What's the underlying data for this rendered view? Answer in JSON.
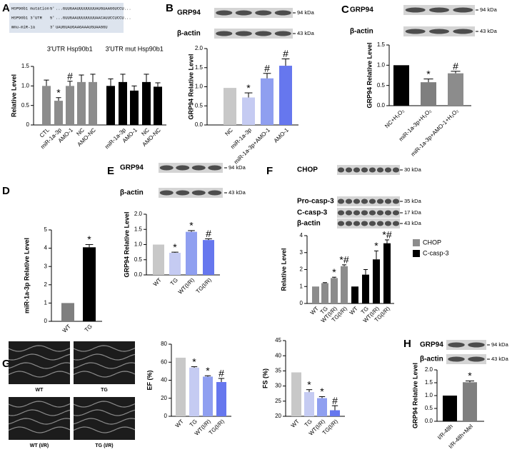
{
  "panel_letters": [
    "A",
    "B",
    "C",
    "D",
    "E",
    "F",
    "G",
    "H"
  ],
  "sequence": {
    "rows": [
      {
        "name": "HSP90b1 mutation",
        "end": "5'",
        "seq": "...GUUGAAUUUUUUUUAUGUAAGGUCCU..."
      },
      {
        "name": "HSP90b1 3'UTR",
        "end": "5'",
        "seq": "...GUUGAAUUUUUUUUAACAUUCCUCCU..."
      },
      {
        "name": "mmu-miR-1a",
        "end": "3'",
        "seq": "UAUGUAUGAAGAAAUGUAAGGU"
      }
    ]
  },
  "blots": [
    {
      "rows": [
        {
          "label": "GRP94",
          "size": "94 kDa"
        },
        {
          "label": "β-actin",
          "size": "43 kDa"
        }
      ]
    },
    {
      "rows": [
        {
          "label": "GRP94",
          "size": "94 kDa"
        },
        {
          "label": "β-actin",
          "size": "43 kDa"
        }
      ]
    },
    {
      "rows": [
        {
          "label": "GRP94",
          "size": "94 kDa"
        },
        {
          "label": "β-actin",
          "size": "43 kDa"
        }
      ]
    },
    {
      "rows": [
        {
          "label": "CHOP",
          "size": "30 kDa"
        },
        {
          "label": "Pro-casp-3",
          "size": "35 kDa"
        },
        {
          "label": "C-casp-3",
          "size": "17 kDa"
        },
        {
          "label": "β-actin",
          "size": "43 kDa"
        }
      ]
    },
    {
      "rows": [
        {
          "label": "GRP94",
          "size": "94 kDa"
        },
        {
          "label": "β-actin",
          "size": "43 kDa"
        }
      ]
    }
  ],
  "echo_images": [
    "WT",
    "TG",
    "WT (I/R)",
    "TG (I/R)"
  ],
  "chart_data": [
    {
      "type": "bar",
      "ylabel": "Relative Level",
      "ylim": [
        0,
        1.5
      ],
      "yticks": [
        0,
        0.5,
        {
          "value": 1,
          "label": "1.0"
        },
        1.5
      ],
      "categories": [
        "CTL",
        "miR-1a-3p",
        "AMO-1",
        "NC",
        "AMO-NC",
        null,
        "miR-1a-3p",
        "AMO-1",
        "NC",
        "AMO-NC"
      ],
      "series": [
        {
          "name": "3'UTR Hsp90b1",
          "color": "#8c8c8c",
          "values": [
            1.0,
            0.62,
            1.0,
            1.1,
            1.1,
            null,
            null,
            null,
            null,
            null
          ],
          "errors": [
            0.15,
            0.08,
            0.12,
            0.18,
            0.2,
            null,
            null,
            null,
            null,
            null
          ],
          "significance": [
            null,
            "*",
            "#",
            null,
            null,
            null,
            null,
            null,
            null,
            null
          ]
        },
        {
          "name": "3'UTR mut Hsp90b1",
          "color": "#000000",
          "values": [
            null,
            null,
            null,
            null,
            null,
            1.0,
            1.1,
            0.88,
            1.1,
            0.98
          ],
          "errors": [
            null,
            null,
            null,
            null,
            null,
            0.18,
            0.2,
            0.12,
            0.2,
            0.1
          ],
          "significance": [
            null,
            null,
            null,
            null,
            null,
            null,
            null,
            null,
            null,
            null
          ]
        }
      ]
    },
    {
      "type": "bar",
      "ylabel": "GRP94 Relative Level",
      "ylim": [
        0,
        2
      ],
      "yticks": [
        {
          "value": 0,
          "label": "0.0"
        },
        0.5,
        {
          "value": 1,
          "label": "1.0"
        },
        1.5,
        {
          "value": 2,
          "label": "2.0"
        }
      ],
      "categories": [
        "NC",
        "miR-1a-3p",
        "miR-1a-3p+AMO-1",
        "AMO-1"
      ],
      "series": [
        {
          "colors": [
            "#c8c8c8",
            "#c5cbf2",
            "#8f9ff0",
            "#6677ee"
          ],
          "values": [
            0.97,
            0.72,
            1.22,
            1.55
          ],
          "errors": [
            null,
            0.12,
            0.13,
            0.18
          ],
          "significance": [
            null,
            "*",
            "#",
            "#"
          ]
        }
      ]
    },
    {
      "type": "bar",
      "ylabel": "GRP94 Relative Level",
      "ylim": [
        0,
        1.5
      ],
      "yticks": [
        {
          "value": 0,
          "label": "0.0"
        },
        0.5,
        {
          "value": 1,
          "label": "1.0"
        },
        1.5
      ],
      "categories": [
        "NC+H₂O₂",
        "miR-1a-3p+H₂O₂",
        "miR-1a-3p+AMO-1+H₂O₂"
      ],
      "series": [
        {
          "colors": [
            "#000000",
            "#7f7f7f",
            "#8c8c8c"
          ],
          "values": [
            1.0,
            0.58,
            0.8
          ],
          "errors": [
            null,
            0.08,
            0.05
          ],
          "significance": [
            null,
            "*",
            "#"
          ]
        }
      ]
    },
    {
      "type": "bar",
      "ylabel": "miR-1a-3p Relative Level",
      "ylim": [
        0,
        5
      ],
      "yticks": [
        0,
        1,
        2,
        3,
        4,
        5
      ],
      "categories": [
        "WT",
        "TG"
      ],
      "series": [
        {
          "colors": [
            "#7f7f7f",
            "#000000"
          ],
          "values": [
            1.0,
            4.05
          ],
          "errors": [
            null,
            0.15
          ],
          "significance": [
            null,
            "*"
          ]
        }
      ]
    },
    {
      "type": "bar",
      "ylabel": "GRP94 Relative Level",
      "ylim": [
        0,
        2
      ],
      "yticks": [
        {
          "value": 0,
          "label": "0.0"
        },
        0.5,
        {
          "value": 1,
          "label": "1.0"
        },
        1.5,
        {
          "value": 2,
          "label": "2.0"
        }
      ],
      "categories": [
        "WT",
        "TG",
        "WT(I/R)",
        "TG(I/R)"
      ],
      "series": [
        {
          "colors": [
            "#c8c8c8",
            "#c5cbf2",
            "#8f9ff0",
            "#6677ee"
          ],
          "values": [
            1.0,
            0.73,
            1.42,
            1.15
          ],
          "errors": [
            null,
            0.02,
            0.04,
            0.04
          ],
          "significance": [
            null,
            "*",
            "*",
            "#"
          ]
        }
      ]
    },
    {
      "type": "bar",
      "ylabel": "Relative Level",
      "ylim": [
        0,
        4
      ],
      "legend": "right",
      "yticks": [
        0,
        1,
        2,
        3,
        4
      ],
      "categories": [
        "WT",
        "TG",
        "WT(I/R)",
        "TG(I/R)",
        "WT",
        "TG",
        "WT(I/R)",
        "TG(I/R)"
      ],
      "series": [
        {
          "name": "CHOP",
          "color": "#8c8c8c",
          "values": [
            1.0,
            1.2,
            1.5,
            2.2,
            null,
            null,
            null,
            null
          ],
          "errors": [
            null,
            0.03,
            0.05,
            0.08,
            null,
            null,
            null,
            null
          ],
          "significance": [
            null,
            null,
            "*",
            "*#",
            null,
            null,
            null,
            null
          ]
        },
        {
          "name": "C-casp-3",
          "color": "#000000",
          "values": [
            null,
            null,
            null,
            null,
            1.0,
            1.7,
            2.6,
            3.55
          ],
          "errors": [
            null,
            null,
            null,
            null,
            null,
            0.3,
            0.5,
            0.2
          ],
          "significance": [
            null,
            null,
            null,
            null,
            null,
            null,
            "*",
            "*#"
          ]
        }
      ]
    },
    {
      "type": "bar",
      "ylabel": "EF (%)",
      "ylim": [
        0,
        80
      ],
      "yticks": [
        0,
        20,
        40,
        60,
        80
      ],
      "categories": [
        "WT",
        "TG",
        "WT(I/R)",
        "TG(I/R)"
      ],
      "series": [
        {
          "colors": [
            "#c8c8c8",
            "#c5cbf2",
            "#8f9ff0",
            "#6677ee"
          ],
          "values": [
            65,
            54,
            44,
            38
          ],
          "errors": [
            null,
            1,
            1,
            4
          ],
          "significance": [
            null,
            "*",
            "*",
            "#"
          ]
        }
      ]
    },
    {
      "type": "bar",
      "ylabel": "FS (%)",
      "ylim": [
        20,
        45
      ],
      "yticks": [
        20,
        25,
        30,
        35,
        40,
        45
      ],
      "categories": [
        "WT",
        "TG",
        "WT(I/R)",
        "TG(I/R)"
      ],
      "series": [
        {
          "colors": [
            "#c8c8c8",
            "#c5cbf2",
            "#8f9ff0",
            "#6677ee"
          ],
          "values": [
            34.5,
            28,
            26,
            22
          ],
          "errors": [
            null,
            0.8,
            0.5,
            1.5
          ],
          "significance": [
            null,
            "*",
            "*",
            "#"
          ]
        }
      ]
    },
    {
      "type": "bar",
      "ylabel": "GRP94 Relative Level",
      "ylim": [
        0,
        2
      ],
      "yticks": [
        {
          "value": 0,
          "label": "0.0"
        },
        0.5,
        {
          "value": 1,
          "label": "1.0"
        },
        1.5,
        {
          "value": 2,
          "label": "2.0"
        }
      ],
      "categories": [
        "I/R-48h",
        "I/R-48h+Mel"
      ],
      "series": [
        {
          "colors": [
            "#000000",
            "#7f7f7f"
          ],
          "values": [
            1.0,
            1.52
          ],
          "errors": [
            null,
            0.05
          ],
          "significance": [
            null,
            "*"
          ]
        }
      ]
    }
  ]
}
